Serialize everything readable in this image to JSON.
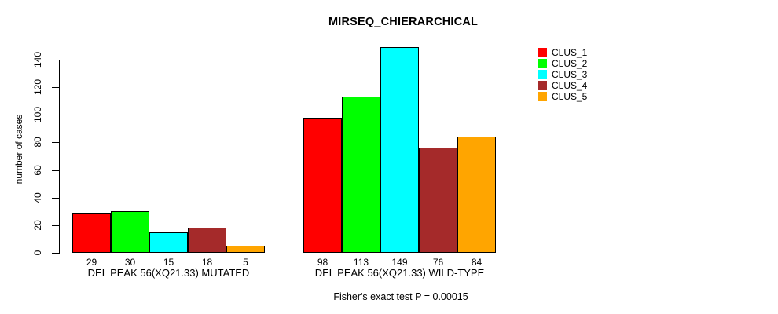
{
  "chart_data": {
    "type": "bar",
    "title": "MIRSEQ_CHIERARCHICAL",
    "ylabel": "number of cases",
    "xlabel": "",
    "ylim": [
      0,
      140
    ],
    "yticks": [
      0,
      20,
      40,
      60,
      80,
      100,
      120,
      140
    ],
    "grid": false,
    "legend_position": "right",
    "categories": [
      "DEL PEAK 56(XQ21.33) MUTATED",
      "DEL PEAK 56(XQ21.33) WILD-TYPE"
    ],
    "series": [
      {
        "name": "CLUS_1",
        "color": "#FF0000",
        "values": [
          29,
          98
        ]
      },
      {
        "name": "CLUS_2",
        "color": "#00FF00",
        "values": [
          30,
          113
        ]
      },
      {
        "name": "CLUS_3",
        "color": "#00FFFF",
        "values": [
          15,
          149
        ]
      },
      {
        "name": "CLUS_4",
        "color": "#A52A2A",
        "values": [
          18,
          76
        ]
      },
      {
        "name": "CLUS_5",
        "color": "#FFA500",
        "values": [
          5,
          84
        ]
      }
    ],
    "bar_value_labels": true,
    "annotation": "Fisher's exact test P = 0.00015",
    "axis_color": "#000000",
    "background_color": "#FFFFFF"
  }
}
